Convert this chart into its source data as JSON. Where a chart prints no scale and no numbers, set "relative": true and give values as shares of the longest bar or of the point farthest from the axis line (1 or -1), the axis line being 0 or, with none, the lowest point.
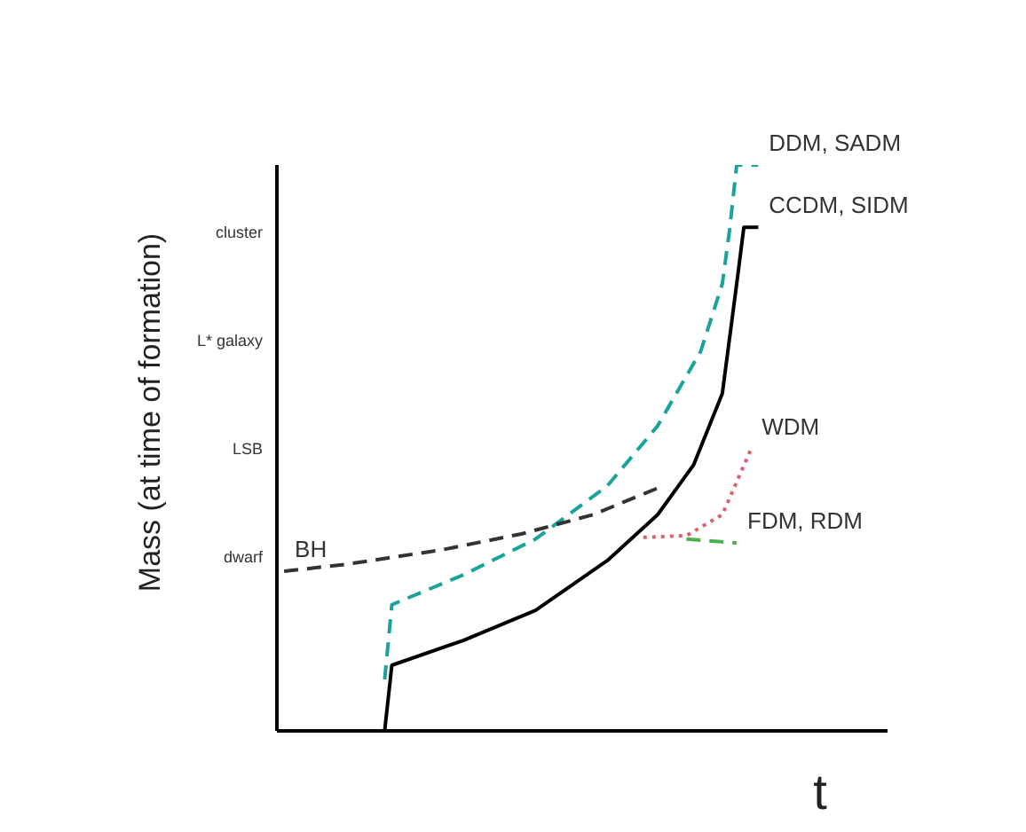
{
  "chart_data": {
    "type": "line",
    "relative": true,
    "xlabel": "t",
    "ylabel": "Mass (at time of formation)",
    "grid": false,
    "legend": false,
    "marker": "none",
    "annotations": [
      "cluster",
      "L* galaxy",
      "LSB",
      "dwarf"
    ],
    "categories": [
      null,
      null,
      null,
      null,
      null,
      null,
      null,
      null,
      null,
      null,
      null,
      null,
      null,
      null,
      null,
      null,
      null,
      null,
      null,
      null,
      null,
      null,
      null,
      null,
      null,
      null,
      null,
      null,
      null,
      null,
      null,
      null,
      null,
      null,
      null,
      null,
      null,
      null,
      null,
      null,
      null,
      null,
      null,
      null,
      null,
      null,
      null,
      null,
      null,
      null,
      null,
      null,
      null,
      null,
      null,
      null,
      null,
      null,
      null,
      null,
      null,
      null,
      null,
      null,
      null,
      null,
      null,
      null,
      null,
      null,
      null,
      null,
      null,
      null,
      null,
      null,
      null,
      null,
      null,
      null,
      null,
      null,
      null,
      null,
      null,
      null
    ],
    "series": [
      {
        "name": "CCDM, SIDM",
        "color": "#000000",
        "line_style": "solid",
        "values": [
          null,
          null,
          null,
          null,
          null,
          null,
          null,
          null,
          null,
          null,
          null,
          null,
          null,
          null,
          null,
          0,
          0.116,
          null,
          null,
          null,
          null,
          null,
          null,
          null,
          null,
          null,
          0.16,
          null,
          null,
          null,
          null,
          null,
          null,
          null,
          null,
          null,
          0.213,
          null,
          null,
          null,
          null,
          null,
          null,
          null,
          null,
          null,
          0.301,
          null,
          null,
          null,
          null,
          null,
          null,
          0.382,
          null,
          null,
          null,
          null,
          0.47,
          null,
          null,
          null,
          0.596,
          null,
          0.79,
          0.89,
          null,
          0.89,
          null,
          null,
          null,
          null,
          null,
          null,
          null,
          null,
          null,
          null,
          null,
          null,
          null,
          null,
          null,
          null,
          null,
          null
        ]
      },
      {
        "name": "DDM, SADM",
        "color": "#1aa39a",
        "line_style": "dashed",
        "values": [
          null,
          null,
          null,
          null,
          null,
          null,
          null,
          null,
          null,
          null,
          null,
          null,
          null,
          null,
          null,
          0.091,
          0.223,
          null,
          null,
          null,
          null,
          null,
          null,
          null,
          null,
          null,
          0.276,
          null,
          null,
          null,
          null,
          null,
          null,
          null,
          null,
          null,
          0.339,
          null,
          null,
          null,
          null,
          null,
          null,
          null,
          null,
          null,
          0.433,
          null,
          null,
          null,
          null,
          null,
          null,
          0.539,
          null,
          null,
          null,
          null,
          null,
          0.671,
          null,
          null,
          0.79,
          0.884,
          1,
          null,
          null,
          1,
          null,
          null,
          null,
          null,
          null,
          null,
          null,
          null,
          null,
          null,
          null,
          null,
          null,
          null,
          null,
          null,
          null,
          null
        ]
      },
      {
        "name": "BH",
        "color": "#333333",
        "line_style": "dashed",
        "values": [
          null,
          0.282,
          null,
          null,
          null,
          null,
          null,
          null,
          null,
          null,
          0.295,
          null,
          null,
          null,
          null,
          null,
          null,
          null,
          null,
          null,
          null,
          null,
          null,
          0.32,
          null,
          null,
          null,
          null,
          null,
          null,
          null,
          null,
          null,
          null,
          0.348,
          null,
          null,
          null,
          null,
          null,
          null,
          null,
          null,
          null,
          0.382,
          null,
          null,
          null,
          null,
          null,
          null,
          null,
          null,
          0.429,
          null,
          null,
          null,
          null,
          null,
          null,
          null,
          null,
          null,
          null,
          null,
          null,
          null,
          null,
          null,
          null,
          null,
          null,
          null,
          null,
          null,
          null,
          null,
          null,
          null,
          null,
          null,
          null,
          null,
          null,
          null,
          null
        ]
      },
      {
        "name": "WDM",
        "color": "#d9606f",
        "line_style": "dotted",
        "values": [
          null,
          null,
          null,
          null,
          null,
          null,
          null,
          null,
          null,
          null,
          null,
          null,
          null,
          null,
          null,
          null,
          null,
          null,
          null,
          null,
          null,
          null,
          null,
          null,
          null,
          null,
          null,
          null,
          null,
          null,
          null,
          null,
          null,
          null,
          null,
          null,
          null,
          null,
          null,
          null,
          null,
          null,
          null,
          null,
          null,
          null,
          null,
          null,
          null,
          null,
          null,
          0.342,
          null,
          null,
          null,
          null,
          null,
          0.345,
          null,
          null,
          null,
          null,
          0.382,
          null,
          null,
          null,
          0.498,
          null,
          null,
          null,
          null,
          null,
          null,
          null,
          null,
          null,
          null,
          null,
          null,
          null,
          null,
          null,
          null,
          null,
          null,
          null
        ]
      },
      {
        "name": "FDM, RDM",
        "color": "#4caf50",
        "line_style": "dashed",
        "values": [
          null,
          null,
          null,
          null,
          null,
          null,
          null,
          null,
          null,
          null,
          null,
          null,
          null,
          null,
          null,
          null,
          null,
          null,
          null,
          null,
          null,
          null,
          null,
          null,
          null,
          null,
          null,
          null,
          null,
          null,
          null,
          null,
          null,
          null,
          null,
          null,
          null,
          null,
          null,
          null,
          null,
          null,
          null,
          null,
          null,
          null,
          null,
          null,
          null,
          null,
          null,
          null,
          null,
          null,
          null,
          null,
          null,
          0.339,
          null,
          null,
          null,
          null,
          null,
          null,
          0.332,
          null,
          null,
          null,
          null,
          null,
          null,
          null,
          null,
          null,
          null,
          null,
          null,
          null,
          null,
          null,
          null,
          null,
          null,
          null,
          null,
          null
        ]
      }
    ]
  }
}
